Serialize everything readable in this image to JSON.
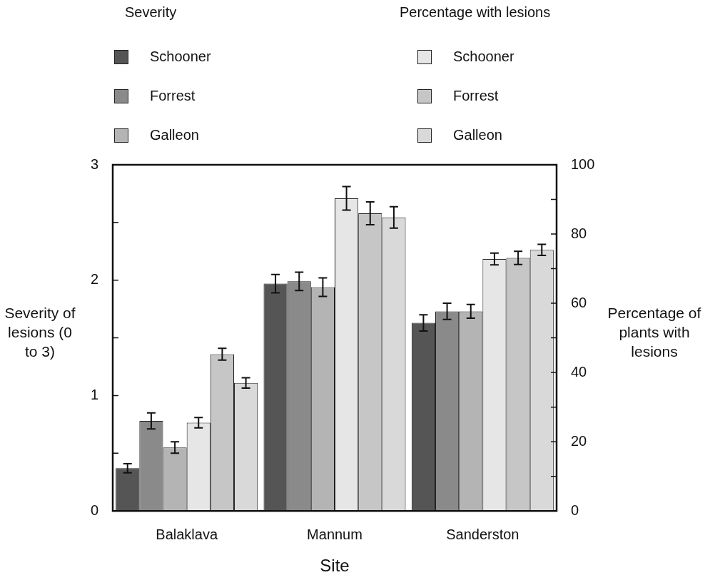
{
  "chart_data": {
    "type": "bar",
    "xlabel": "Site",
    "ylabel": "Severity of lesions (0 to 3)",
    "y2label": "Percentage of plants with lesions",
    "legend_title": [
      "Severity",
      "Percentage with lesions"
    ],
    "legend": "top",
    "categories": [
      "Balaklava",
      "Mannum",
      "Sanderston"
    ],
    "series": [
      {
        "name": "Schooner",
        "color": "#555555",
        "axis": "y",
        "values": [
          0.37,
          1.97,
          1.63
        ],
        "errors": [
          0.04,
          0.08,
          0.07
        ]
      },
      {
        "name": "Forrest",
        "color": "#8a8a8a",
        "axis": "y",
        "values": [
          0.78,
          1.99,
          1.73
        ],
        "errors": [
          0.07,
          0.08,
          0.07
        ]
      },
      {
        "name": "Galleon",
        "color": "#b4b4b4",
        "axis": "y",
        "values": [
          0.55,
          1.94,
          1.73
        ],
        "errors": [
          0.05,
          0.08,
          0.06
        ]
      },
      {
        "name": "Schooner",
        "color": "#e6e6e6",
        "axis": "y2",
        "values": [
          25.5,
          90.3,
          72.8
        ],
        "errors": [
          1.5,
          3.4,
          1.7
        ]
      },
      {
        "name": "Forrest",
        "color": "#c6c6c6",
        "axis": "y2",
        "values": [
          45.3,
          86.0,
          73.1
        ],
        "errors": [
          1.7,
          3.3,
          1.9
        ]
      },
      {
        "name": "Galleon",
        "color": "#d9d9d9",
        "axis": "y2",
        "values": [
          37.0,
          84.8,
          75.4
        ],
        "errors": [
          1.5,
          3.1,
          1.6
        ]
      }
    ],
    "ylim": [
      0,
      3
    ],
    "yticks": [
      0,
      {
        "value": 0.5,
        "label": null
      },
      1,
      {
        "value": 1.5,
        "label": null
      },
      2,
      {
        "value": 2.5,
        "label": null
      },
      3
    ],
    "y2lim": [
      0,
      100
    ],
    "y2ticks": [
      0,
      {
        "value": 10,
        "label": null
      },
      20,
      {
        "value": 30,
        "label": null
      },
      40,
      {
        "value": 50,
        "label": null
      },
      60,
      {
        "value": 70,
        "label": null
      },
      80,
      {
        "value": 90,
        "label": null
      },
      100
    ]
  }
}
